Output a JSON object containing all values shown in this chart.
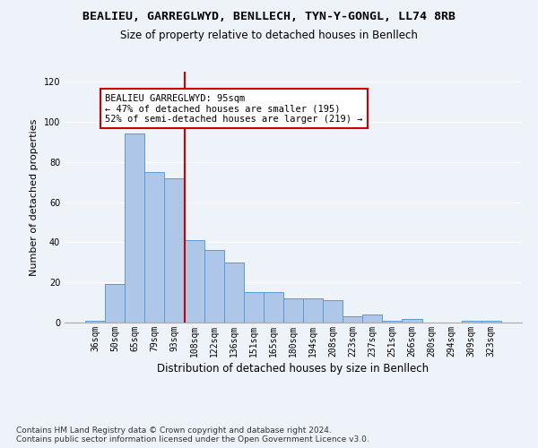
{
  "title1": "BEALIEU, GARREGLWYD, BENLLECH, TYN-Y-GONGL, LL74 8RB",
  "title2": "Size of property relative to detached houses in Benllech",
  "xlabel": "Distribution of detached houses by size in Benllech",
  "ylabel": "Number of detached properties",
  "categories": [
    "36sqm",
    "50sqm",
    "65sqm",
    "79sqm",
    "93sqm",
    "108sqm",
    "122sqm",
    "136sqm",
    "151sqm",
    "165sqm",
    "180sqm",
    "194sqm",
    "208sqm",
    "223sqm",
    "237sqm",
    "251sqm",
    "266sqm",
    "280sqm",
    "294sqm",
    "309sqm",
    "323sqm"
  ],
  "values": [
    1,
    19,
    94,
    75,
    72,
    41,
    36,
    30,
    15,
    15,
    12,
    12,
    11,
    3,
    4,
    1,
    2,
    0,
    0,
    1,
    1
  ],
  "bar_color": "#aec6e8",
  "bar_edge_color": "#5b9bd5",
  "annotation_label": "BEALIEU GARREGLWYD: 95sqm",
  "annotation_line1": "← 47% of detached houses are smaller (195)",
  "annotation_line2": "52% of semi-detached houses are larger (219) →",
  "vline_color": "#cc0000",
  "annotation_box_facecolor": "#ffffff",
  "annotation_box_edgecolor": "#cc0000",
  "ylim": [
    0,
    125
  ],
  "yticks": [
    0,
    20,
    40,
    60,
    80,
    100,
    120
  ],
  "footer1": "Contains HM Land Registry data © Crown copyright and database right 2024.",
  "footer2": "Contains public sector information licensed under the Open Government Licence v3.0.",
  "title1_fontsize": 9.5,
  "title2_fontsize": 8.5,
  "xlabel_fontsize": 8.5,
  "ylabel_fontsize": 8,
  "tick_fontsize": 7,
  "annotation_fontsize": 7.5,
  "footer_fontsize": 6.5,
  "background_color": "#eef2f9",
  "grid_color": "#ffffff",
  "vline_x": 4.5
}
